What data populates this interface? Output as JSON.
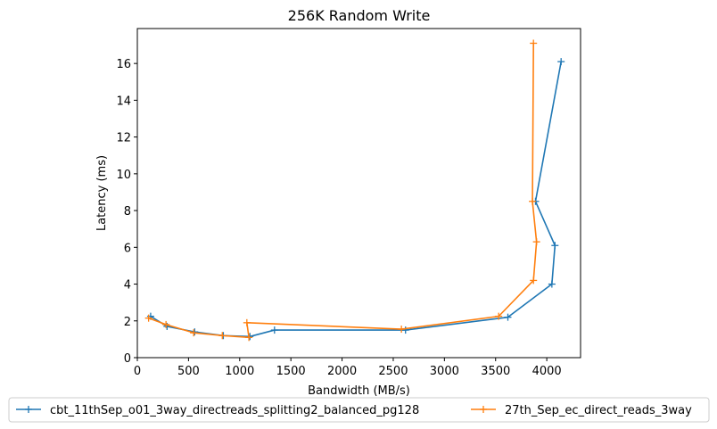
{
  "chart_data": {
    "type": "line",
    "title": "256K  Random Write",
    "xlabel": "Bandwidth (MB/s)",
    "ylabel": "Latency (ms)",
    "xlim": [
      0,
      4330
    ],
    "ylim": [
      0,
      17.9
    ],
    "xticks": [
      0,
      500,
      1000,
      1500,
      2000,
      2500,
      3000,
      3500,
      4000
    ],
    "yticks": [
      0,
      2,
      4,
      6,
      8,
      10,
      12,
      14,
      16
    ],
    "grid": false,
    "legend_position": "bottom",
    "series": [
      {
        "name": "cbt_11thSep_o01_3way_directreads_splitting2_balanced_pg128",
        "color": "#1f77b4",
        "marker": "+",
        "x": [
          130,
          290,
          560,
          840,
          1100,
          1340,
          2620,
          3620,
          4050,
          4080,
          3890,
          4140
        ],
        "y": [
          2.25,
          1.7,
          1.4,
          1.2,
          1.15,
          1.5,
          1.5,
          2.2,
          4.0,
          6.1,
          8.5,
          16.1
        ]
      },
      {
        "name": "27th_Sep_ec_direct_reads_3way",
        "color": "#ff7f0e",
        "marker": "+",
        "x": [
          110,
          280,
          550,
          830,
          1090,
          1070,
          2580,
          3530,
          3870,
          3900,
          3860,
          3870
        ],
        "y": [
          2.15,
          1.8,
          1.35,
          1.2,
          1.1,
          1.9,
          1.55,
          2.25,
          4.2,
          6.3,
          8.5,
          17.1
        ]
      }
    ]
  }
}
